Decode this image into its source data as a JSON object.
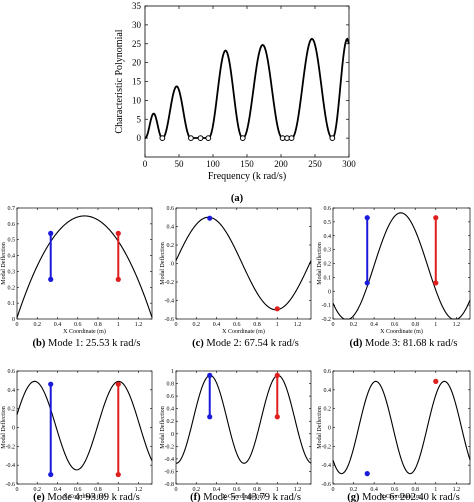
{
  "figure": {
    "caption_a": "(a)",
    "main_chart": {
      "type": "line",
      "ylabel": "Characteristic Polynomial",
      "xlabel": "Frequency (k rad/s)",
      "xlim": [
        0,
        300
      ],
      "ylim": [
        -5,
        35
      ],
      "xticks": [
        "0",
        "50",
        "100",
        "150",
        "200",
        "250",
        "300"
      ],
      "yticks": [
        "0",
        "5",
        "10",
        "15",
        "20",
        "25",
        "30",
        "35"
      ],
      "roots": [
        25.53,
        67.54,
        81.68,
        93.09,
        143.79,
        202.4,
        209.0,
        215.5,
        275.5
      ],
      "peaks": [
        {
          "x": 14,
          "y": 6.5
        },
        {
          "x": 48,
          "y": 13.7
        },
        {
          "x": 122,
          "y": 23.2
        },
        {
          "x": 167,
          "y": 24.7
        },
        {
          "x": 256,
          "y": 26.3
        },
        {
          "x": 297,
          "y": 26.3
        }
      ],
      "root_marker": "open-circle"
    },
    "mode_charts": [
      {
        "id": "b",
        "caption_letter": "(b)",
        "caption_text": "Mode 1: 25.53 k rad/s",
        "ylim": [
          0,
          0.7
        ],
        "yticks": [
          "0",
          "0.1",
          "0.2",
          "0.3",
          "0.4",
          "0.5",
          "0.6",
          "0.7"
        ],
        "xticks": [
          "0",
          "0.2",
          "0.4",
          "0.6",
          "0.8",
          "1",
          "1.2"
        ],
        "ylabel": "Modal Deflection",
        "xlabel": "X Coordinate (m)",
        "left_support": {
          "x": 0.333,
          "y_low": 0.25,
          "y_high": 0.54
        },
        "right_support": {
          "x": 1.0,
          "y_low": 0.25,
          "y_high": 0.54
        }
      },
      {
        "id": "c",
        "caption_letter": "(c)",
        "caption_text": "Mode 2: 67.54 k rad/s",
        "ylim": [
          -0.6,
          0.6
        ],
        "yticks": [
          "-0.6",
          "-0.4",
          "-0.2",
          "0",
          "0.2",
          "0.4",
          "0.6"
        ],
        "xticks": [
          "0",
          "0.2",
          "0.4",
          "0.6",
          "0.8",
          "1",
          "1.2"
        ],
        "ylabel": "Modal Deflection",
        "xlabel": "X Coordinate (m)",
        "left_support": {
          "x": 0.333,
          "y_low": 0.49,
          "y_high": 0.49
        },
        "right_support": {
          "x": 1.0,
          "y_low": -0.49,
          "y_high": -0.49
        }
      },
      {
        "id": "d",
        "caption_letter": "(d)",
        "caption_text": "Mode 3: 81.68 k rad/s",
        "ylim": [
          -0.2,
          0.6
        ],
        "yticks": [
          "-0.2",
          "-0.1",
          "0",
          "0.1",
          "0.2",
          "0.3",
          "0.4",
          "0.5",
          "0.6"
        ],
        "xticks": [
          "0",
          "0.2",
          "0.4",
          "0.6",
          "0.8",
          "1",
          "1.2"
        ],
        "ylabel": "Modal Deflection",
        "xlabel": "X Coordinate (m)",
        "left_support": {
          "x": 0.333,
          "y_low": 0.06,
          "y_high": 0.53
        },
        "right_support": {
          "x": 1.0,
          "y_low": 0.06,
          "y_high": 0.53
        }
      },
      {
        "id": "e",
        "caption_letter": "(e)",
        "caption_text": "Mode 4: 93.09 k rad/s",
        "ylim": [
          -0.6,
          0.6
        ],
        "yticks": [
          "-0.6",
          "-0.4",
          "-0.2",
          "0",
          "0.2",
          "0.4",
          "0.6"
        ],
        "xticks": [
          "0",
          "0.2",
          "0.4",
          "0.6",
          "0.8",
          "1",
          "1.2"
        ],
        "ylabel": "Modal Deflection",
        "xlabel": "X Coordinate (m)",
        "left_support": {
          "x": 0.333,
          "y_low": -0.5,
          "y_high": 0.46
        },
        "right_support": {
          "x": 1.0,
          "y_low": -0.5,
          "y_high": 0.46
        }
      },
      {
        "id": "f",
        "caption_letter": "(f)",
        "caption_text": "Mode 5: 143.79 k rad/s",
        "ylim": [
          -0.8,
          1
        ],
        "yticks": [
          "-0.8",
          "-0.6",
          "-0.4",
          "-0.2",
          "0",
          "0.2",
          "0.4",
          "0.6",
          "0.8",
          "1"
        ],
        "xticks": [
          "0",
          "0.2",
          "0.4",
          "0.6",
          "0.8",
          "1",
          "1.2"
        ],
        "ylabel": "Modal Deflection",
        "xlabel": "X Coordinate (m)",
        "left_support": {
          "x": 0.333,
          "y_low": 0.27,
          "y_high": 0.93
        },
        "right_support": {
          "x": 1.0,
          "y_low": 0.27,
          "y_high": 0.93
        }
      },
      {
        "id": "g",
        "caption_letter": "(g)",
        "caption_text": "Mode 6: 202.40 k rad/s",
        "ylim": [
          -0.6,
          0.6
        ],
        "yticks": [
          "-0.6",
          "-0.4",
          "-0.2",
          "0",
          "0.2",
          "0.4",
          "0.6"
        ],
        "xticks": [
          "0",
          "0.2",
          "0.4",
          "0.6",
          "0.8",
          "1",
          "1.2"
        ],
        "ylabel": "Modal Deflection",
        "xlabel": "X Coordinate (m)",
        "left_support": {
          "x": 0.333,
          "y_low": -0.49,
          "y_high": -0.49
        },
        "right_support": {
          "x": 1.0,
          "y_low": 0.49,
          "y_high": 0.49
        }
      }
    ],
    "colors": {
      "curve": "#000000",
      "left_support": "#1a1adb",
      "right_support": "#e01e1e"
    }
  }
}
